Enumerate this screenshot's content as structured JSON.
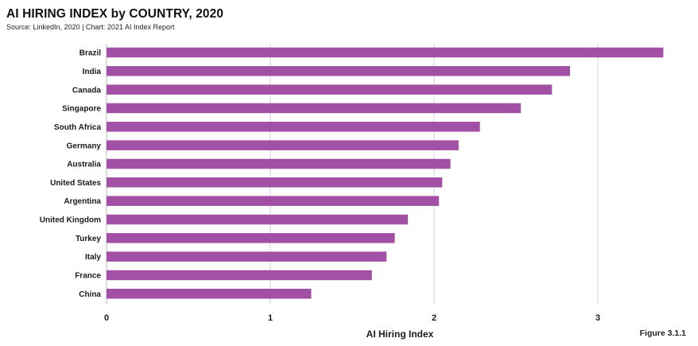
{
  "header": {
    "title": "AI HIRING INDEX by COUNTRY, 2020",
    "source": "Source: LinkedIn, 2020 | Chart: 2021 AI Index Report"
  },
  "footer": {
    "figure_label": "Figure 3.1.1"
  },
  "colors": {
    "bar": "#a150a6",
    "grid": "#d0d0d0",
    "text": "#1a1a1a"
  },
  "chart_data": {
    "type": "bar",
    "orientation": "horizontal",
    "title": "AI HIRING INDEX by COUNTRY, 2020",
    "xlabel": "AI Hiring Index",
    "ylabel": "",
    "categories": [
      "Brazil",
      "India",
      "Canada",
      "Singapore",
      "South Africa",
      "Germany",
      "Australia",
      "United States",
      "Argentina",
      "United Kingdom",
      "Turkey",
      "Italy",
      "France",
      "China"
    ],
    "values": [
      3.4,
      2.83,
      2.72,
      2.53,
      2.28,
      2.15,
      2.1,
      2.05,
      2.03,
      1.84,
      1.76,
      1.71,
      1.62,
      1.25
    ],
    "xlim": [
      0,
      3.45
    ],
    "xticks": [
      "0",
      "1",
      "2",
      "3"
    ],
    "grid": true
  }
}
